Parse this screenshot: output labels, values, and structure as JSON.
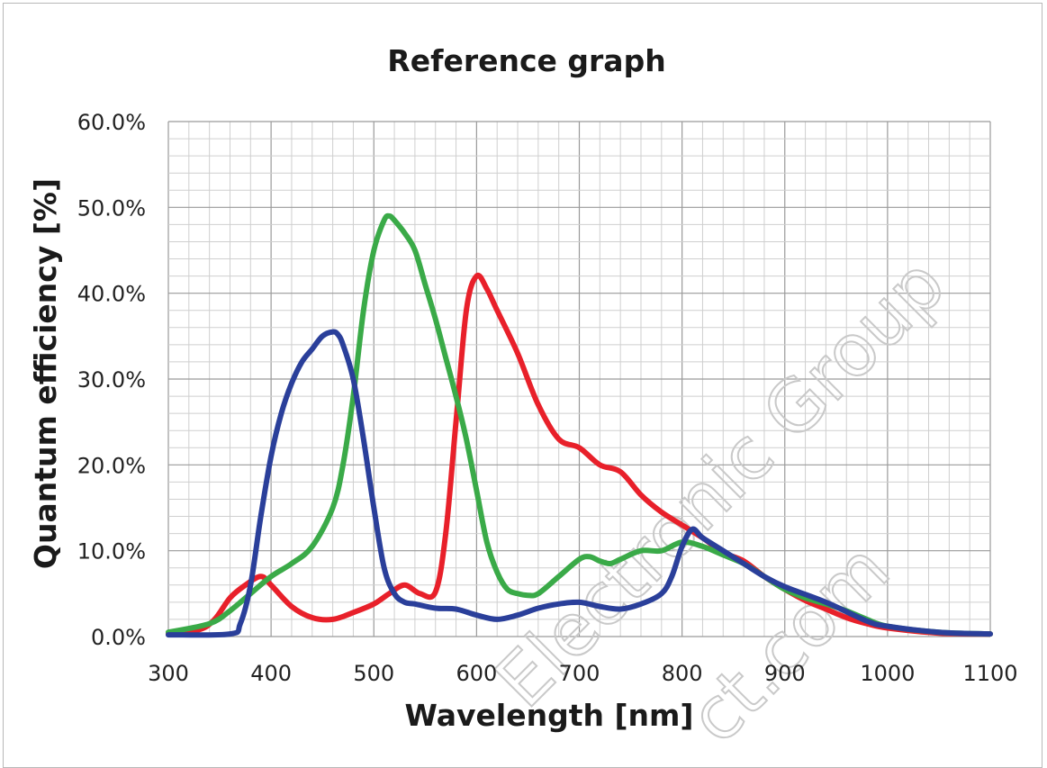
{
  "chart_data": {
    "type": "line",
    "title": "Reference graph",
    "xlabel": "Wavelength [nm]",
    "ylabel": "Quantum efficiency [%]",
    "xlim": [
      300,
      1100
    ],
    "ylim": [
      0,
      60
    ],
    "x_ticks": [
      "300",
      "400",
      "500",
      "600",
      "700",
      "800",
      "900",
      "1000",
      "1100"
    ],
    "y_ticks": [
      "0.0%",
      "10.0%",
      "20.0%",
      "30.0%",
      "40.0%",
      "50.0%",
      "60.0%"
    ],
    "grid": true,
    "legend": "none",
    "series": [
      {
        "color": "#e8202a",
        "x": [
          300,
          330,
          345,
          360,
          375,
          390,
          400,
          420,
          440,
          460,
          480,
          500,
          515,
          530,
          545,
          560,
          570,
          580,
          590,
          600,
          610,
          620,
          640,
          660,
          680,
          700,
          720,
          740,
          760,
          780,
          800,
          820,
          840,
          860,
          880,
          900,
          920,
          940,
          960,
          980,
          1000,
          1050,
          1100
        ],
        "y": [
          0.3,
          0.8,
          2.0,
          4.5,
          6.0,
          7.0,
          6.0,
          3.5,
          2.2,
          2.0,
          2.8,
          3.8,
          5.0,
          6.0,
          5.0,
          5.2,
          12.0,
          25.0,
          38.0,
          42.0,
          40.5,
          38.0,
          33.0,
          27.0,
          23.0,
          22.0,
          20.0,
          19.2,
          16.5,
          14.5,
          13.0,
          11.5,
          9.8,
          8.8,
          7.0,
          5.5,
          4.2,
          3.2,
          2.2,
          1.5,
          1.0,
          0.4,
          0.3
        ]
      },
      {
        "color": "#3aaa48",
        "x": [
          300,
          340,
          360,
          380,
          400,
          420,
          440,
          460,
          470,
          480,
          490,
          500,
          510,
          515,
          520,
          530,
          540,
          550,
          560,
          570,
          580,
          590,
          600,
          610,
          620,
          630,
          640,
          650,
          660,
          680,
          700,
          710,
          720,
          730,
          740,
          760,
          780,
          800,
          820,
          840,
          860,
          880,
          900,
          920,
          940,
          960,
          980,
          1000,
          1050,
          1100
        ],
        "y": [
          0.5,
          1.5,
          3.0,
          5.0,
          7.0,
          8.5,
          10.5,
          15.0,
          20.0,
          28.0,
          38.0,
          45.0,
          48.5,
          49.0,
          48.5,
          47.0,
          45.0,
          41.0,
          37.0,
          32.5,
          28.0,
          23.0,
          17.0,
          11.0,
          7.5,
          5.5,
          5.0,
          4.8,
          5.0,
          7.0,
          9.0,
          9.3,
          8.8,
          8.5,
          9.0,
          10.0,
          10.0,
          11.0,
          10.5,
          9.5,
          8.5,
          7.0,
          5.5,
          4.5,
          3.8,
          3.0,
          2.0,
          1.2,
          0.5,
          0.3
        ]
      },
      {
        "color": "#2a3f9a",
        "x": [
          300,
          360,
          370,
          380,
          390,
          400,
          410,
          420,
          430,
          440,
          450,
          460,
          465,
          470,
          480,
          490,
          500,
          510,
          520,
          530,
          540,
          560,
          580,
          600,
          620,
          640,
          660,
          680,
          700,
          720,
          740,
          760,
          780,
          790,
          800,
          810,
          820,
          840,
          860,
          880,
          900,
          940,
          980,
          1000,
          1050,
          1100
        ],
        "y": [
          0.2,
          0.3,
          1.5,
          6.0,
          14.0,
          21.0,
          26.0,
          29.5,
          32.0,
          33.5,
          35.0,
          35.5,
          35.2,
          34.0,
          30.0,
          23.0,
          15.0,
          8.0,
          5.0,
          4.0,
          3.8,
          3.3,
          3.2,
          2.5,
          2.0,
          2.5,
          3.3,
          3.8,
          4.0,
          3.5,
          3.2,
          3.8,
          5.0,
          7.0,
          10.5,
          12.5,
          11.5,
          10.0,
          8.5,
          7.0,
          5.8,
          4.0,
          1.8,
          1.2,
          0.5,
          0.3
        ]
      }
    ]
  },
  "watermark": {
    "line1": "Electronic Group",
    "line2": "ct.com"
  },
  "colors": {
    "grid_minor": "#cfcfcf",
    "grid_major": "#9a9a9a",
    "text": "#222222"
  }
}
